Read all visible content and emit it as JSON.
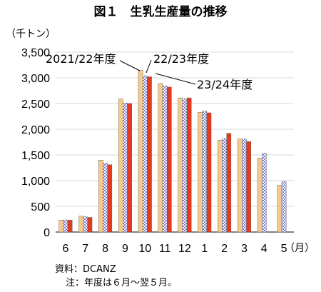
{
  "chart_data": {
    "type": "bar",
    "title": "図１　生乳生産量の推移",
    "unit_label": "（千トン）",
    "x_unit_label": "（月）",
    "categories": [
      "6",
      "7",
      "8",
      "9",
      "10",
      "11",
      "12",
      "1",
      "2",
      "3",
      "4",
      "5"
    ],
    "ylim": [
      0,
      3500
    ],
    "yticks": [
      0,
      500,
      1000,
      1500,
      2000,
      2500,
      3000,
      3500
    ],
    "ytick_labels": [
      "0",
      "500",
      "1,000",
      "1,500",
      "2,000",
      "2,500",
      "3,000",
      "3,500"
    ],
    "grid": true,
    "series": [
      {
        "name": "2021/22年度",
        "color": "#f5c98a",
        "pattern": "solid",
        "values": [
          230,
          310,
          1400,
          2590,
          3150,
          2890,
          2610,
          2330,
          1790,
          1810,
          1440,
          910
        ]
      },
      {
        "name": "22/23年度",
        "color": "#7b7fd4",
        "pattern": "checker",
        "values": [
          235,
          295,
          1340,
          2510,
          3040,
          2840,
          2590,
          2350,
          1820,
          1810,
          1530,
          980
        ]
      },
      {
        "name": "23/24年度",
        "color": "#e53a1e",
        "pattern": "solid",
        "values": [
          232,
          285,
          1310,
          2500,
          3020,
          2820,
          2610,
          2320,
          1920,
          1760,
          null,
          null
        ]
      }
    ]
  },
  "notes": {
    "source": "資料：DCANZ",
    "note": "注：年度は６月～翌５月。"
  }
}
